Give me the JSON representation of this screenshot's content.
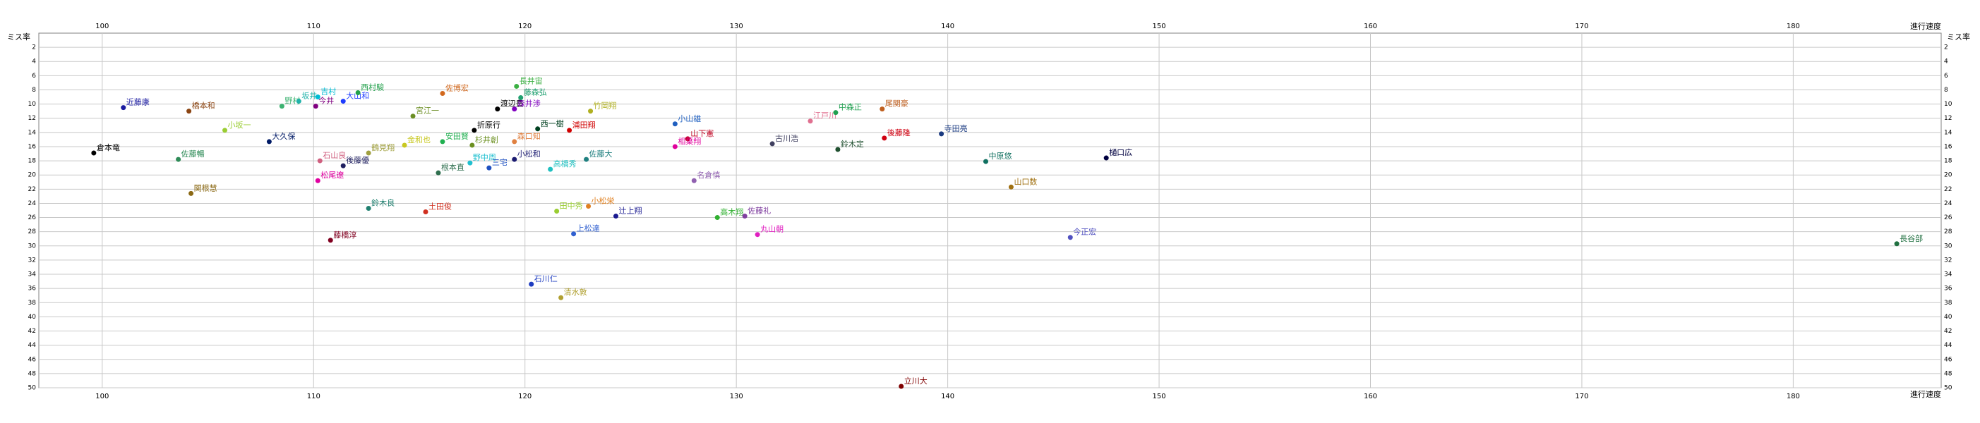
{
  "chart_data": {
    "type": "scatter",
    "x_label": "進行速度",
    "y_label": "ミス率",
    "xlim": [
      97,
      187
    ],
    "ylim": [
      0,
      50
    ],
    "y_inverted": true,
    "grid": true,
    "xticks": [
      100,
      110,
      120,
      130,
      140,
      150,
      160,
      170,
      180
    ],
    "yticks": [
      2,
      4,
      6,
      8,
      10,
      12,
      14,
      16,
      18,
      20,
      22,
      24,
      26,
      28,
      30,
      32,
      34,
      36,
      38,
      40,
      42,
      44,
      46,
      48,
      50
    ],
    "labels": [
      "近藤康",
      "橋本和",
      "倉本竜",
      "小坂一",
      "佐藤暢",
      "関根慧",
      "野村",
      "坂井",
      "吉村",
      "今井",
      "大山和",
      "西村駿",
      "大久保",
      "石山良",
      "松尾遼",
      "後藤優",
      "鶴見翔",
      "鈴木良",
      "土田俊",
      "藤橋淳",
      "宮江一",
      "佐博宏",
      "金和也",
      "安田賢",
      "杉井創",
      "折原行",
      "根本直",
      "野中周",
      "三宅",
      "小松和",
      "渡辺豊",
      "森井渉",
      "長井宙",
      "藤森弘",
      "森口知",
      "西一樹",
      "浦田翔",
      "竹岡翔",
      "石川仁",
      "清水敦",
      "田中秀",
      "小松栄",
      "辻上翔",
      "上松達",
      "高橋秀",
      "佐藤大",
      "小山雄",
      "山下憲",
      "相葉翔",
      "名倉慎",
      "高木翔",
      "佐藤礼",
      "丸山朝",
      "古川浩",
      "江戸川",
      "中森正",
      "鈴木定",
      "尾関豪",
      "後藤隆",
      "寺田亮",
      "中原悠",
      "山口数",
      "樋口広",
      "今正宏",
      "立川大",
      "長谷部"
    ],
    "x": [
      101.0,
      104.1,
      99.6,
      105.8,
      103.6,
      104.2,
      108.5,
      109.3,
      110.2,
      110.1,
      111.4,
      112.1,
      107.9,
      110.3,
      110.2,
      111.4,
      112.6,
      112.6,
      115.3,
      110.8,
      114.7,
      116.1,
      114.3,
      116.1,
      117.5,
      117.6,
      115.9,
      117.4,
      118.3,
      119.5,
      118.7,
      119.5,
      119.6,
      119.8,
      119.5,
      120.6,
      122.1,
      123.1,
      120.3,
      121.7,
      121.5,
      123.0,
      124.3,
      122.3,
      121.2,
      122.9,
      127.1,
      127.7,
      127.1,
      128.0,
      129.1,
      130.4,
      131.0,
      131.7,
      133.5,
      134.7,
      134.8,
      136.9,
      137.0,
      139.7,
      141.8,
      143.0,
      147.5,
      145.8,
      137.8,
      184.9
    ],
    "y": [
      10.5,
      11.0,
      16.9,
      13.7,
      17.8,
      22.6,
      10.3,
      9.6,
      9.0,
      10.3,
      9.6,
      8.4,
      15.3,
      18.0,
      20.8,
      18.7,
      16.9,
      24.7,
      25.2,
      29.2,
      11.7,
      8.5,
      15.8,
      15.3,
      15.8,
      13.7,
      19.7,
      18.3,
      19.0,
      17.8,
      10.7,
      10.7,
      7.5,
      9.1,
      15.3,
      13.5,
      13.7,
      11.0,
      35.4,
      37.3,
      25.1,
      24.4,
      25.8,
      28.3,
      19.2,
      17.8,
      12.8,
      14.9,
      16.0,
      20.8,
      26.0,
      25.8,
      28.4,
      15.6,
      12.4,
      11.2,
      16.4,
      10.7,
      14.8,
      14.2,
      18.1,
      21.7,
      17.6,
      28.8,
      49.8,
      29.7
    ],
    "colors": [
      "#1a1aa0",
      "#8b4513",
      "#000000",
      "#9acd32",
      "#2e8b57",
      "#8b6914",
      "#3cb371",
      "#20b2aa",
      "#00bcd4",
      "#800080",
      "#1e3cff",
      "#22a04b",
      "#001a66",
      "#d06080",
      "#e000a0",
      "#202060",
      "#a0a040",
      "#208070",
      "#d03020",
      "#800020",
      "#6b8e23",
      "#d2691e",
      "#c8c820",
      "#20b050",
      "#6b9020",
      "#000000",
      "#2f6f4f",
      "#20c0d0",
      "#1e50c0",
      "#1a1a70",
      "#000000",
      "#8000c0",
      "#3cb043",
      "#20a070",
      "#e08040",
      "#004020",
      "#d00000",
      "#b0b020",
      "#1e3cc0",
      "#b0a030",
      "#9acd32",
      "#e08020",
      "#1a1a90",
      "#3060d0",
      "#20c0c0",
      "#208080",
      "#2060c0",
      "#c00020",
      "#e0009c",
      "#9060b0",
      "#30b030",
      "#8040a0",
      "#e020c0",
      "#404060",
      "#e07090",
      "#20a050",
      "#205030",
      "#c06020",
      "#d00010",
      "#1a3a80",
      "#107060",
      "#a07010",
      "#000040",
      "#5050c0",
      "#800000",
      "#207040"
    ]
  }
}
